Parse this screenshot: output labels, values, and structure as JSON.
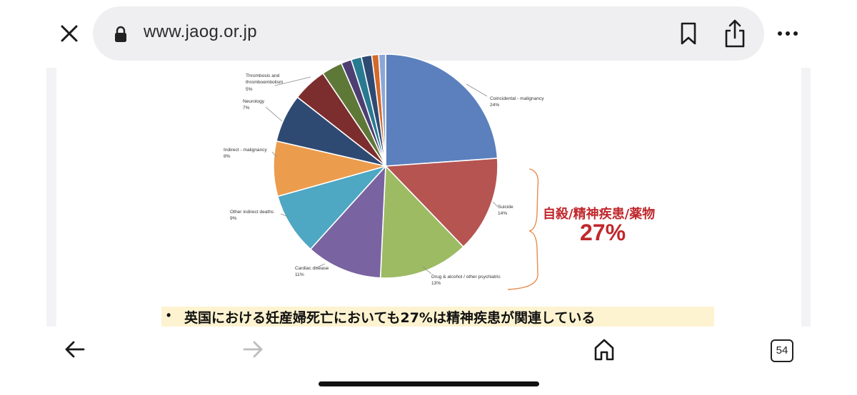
{
  "browser": {
    "url": "www.jaog.or.jp",
    "tab_count": "54"
  },
  "slide": {
    "callout_text": "自殺/精神疾患/薬物",
    "callout_percent": "27%",
    "note_bullet": "•",
    "note_text": "英国における妊産婦死亡においても27%は精神疾患が関連している"
  },
  "chart_data": {
    "type": "pie",
    "slices": [
      {
        "label": "Coincidental - malignancy",
        "value_label": "24%",
        "value": 24,
        "color": "#5b80bd"
      },
      {
        "label": "Suicide",
        "value_label": "14%",
        "value": 14,
        "color": "#b55451"
      },
      {
        "label": "Drug & alcohol / other psychiatric",
        "value_label": "13%",
        "value": 13,
        "color": "#9cbb63"
      },
      {
        "label": "Cardiac disease",
        "value_label": "11%",
        "value": 11,
        "color": "#7a63a1"
      },
      {
        "label": "Other indirect deaths",
        "value_label": "9%",
        "value": 9,
        "color": "#4ea7c3"
      },
      {
        "label": "Indirect - malignancy",
        "value_label": "8%",
        "value": 8,
        "color": "#ec9c4d"
      },
      {
        "label": "Neurology",
        "value_label": "7%",
        "value": 7,
        "color": "#2f4a72"
      },
      {
        "label": "Thrombosis and thromboembolism",
        "value_label": "5%",
        "value": 5,
        "color": "#7c2d2e"
      },
      {
        "label": "",
        "value_label": "",
        "value": 3,
        "color": "#5e7838"
      },
      {
        "label": "",
        "value_label": "",
        "value": 1.5,
        "color": "#4e3f73"
      },
      {
        "label": "",
        "value_label": "",
        "value": 1.5,
        "color": "#287a91"
      },
      {
        "label": "",
        "value_label": "",
        "value": 1.5,
        "color": "#2f4a72"
      },
      {
        "label": "",
        "value_label": "",
        "value": 1,
        "color": "#d46a2a"
      },
      {
        "label": "",
        "value_label": "",
        "value": 1,
        "color": "#8ba7d6"
      }
    ]
  }
}
